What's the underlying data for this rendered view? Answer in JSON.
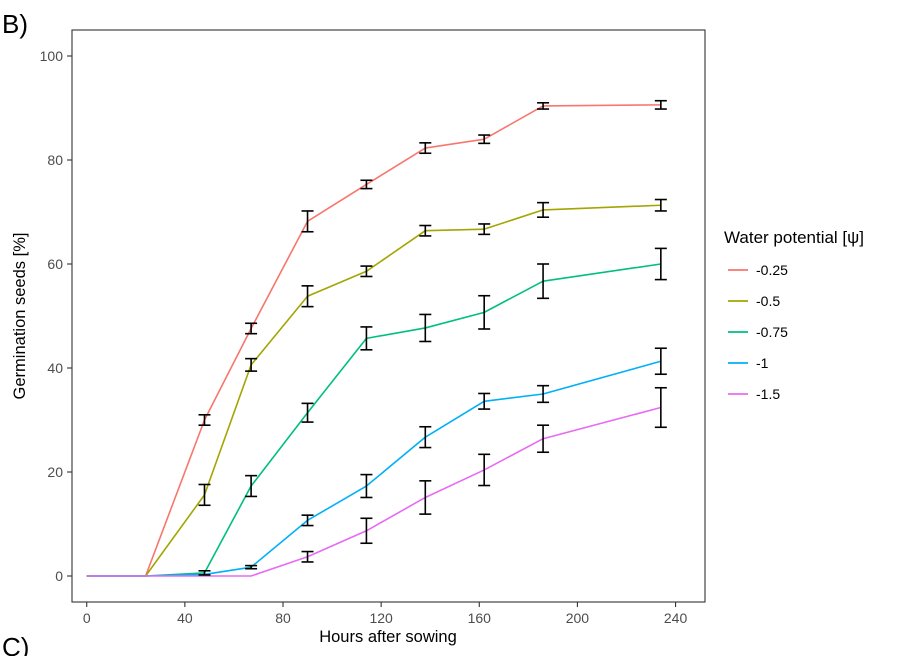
{
  "panel_label_top": "B)",
  "panel_label_bottom": "C)",
  "chart_data": {
    "type": "line",
    "title": "",
    "xlabel": "Hours after sowing",
    "ylabel": "Germination seeds [%]",
    "xlim": [
      -6,
      252
    ],
    "ylim": [
      -5,
      105
    ],
    "x_ticks": [
      0,
      40,
      80,
      120,
      160,
      200,
      240
    ],
    "y_ticks": [
      0,
      20,
      40,
      60,
      80,
      100
    ],
    "grid": false,
    "error_bars": true,
    "legend": {
      "title": "Water potential [ψ]",
      "position": "right"
    },
    "x": [
      0,
      24,
      48,
      67,
      90,
      114,
      138,
      162,
      186,
      234
    ],
    "series": [
      {
        "name": "-0.25",
        "color": "#F8766D",
        "values": [
          0,
          0,
          30,
          47.6,
          68.2,
          75.3,
          82.3,
          84,
          90.4,
          90.6
        ],
        "errors": [
          0,
          0,
          1,
          1,
          2,
          0.8,
          1,
          0.8,
          0.6,
          0.8
        ]
      },
      {
        "name": "-0.5",
        "color": "#A3A500",
        "values": [
          0,
          0,
          15.6,
          40.6,
          53.8,
          58.6,
          66.4,
          66.7,
          70.4,
          71.3
        ],
        "errors": [
          0,
          0,
          2,
          1.2,
          2,
          1,
          1,
          1,
          1.4,
          1.1
        ]
      },
      {
        "name": "-0.75",
        "color": "#00BF7D",
        "values": [
          0,
          0,
          0.6,
          17.3,
          31.4,
          45.7,
          47.7,
          50.7,
          56.7,
          60
        ],
        "errors": [
          0,
          0,
          0.4,
          2,
          1.8,
          2.2,
          2.6,
          3.2,
          3.3,
          3
        ]
      },
      {
        "name": "-1",
        "color": "#00B0F6",
        "values": [
          0,
          0,
          0.3,
          1.7,
          10.7,
          17.3,
          26.7,
          33.6,
          35,
          41.3
        ],
        "errors": [
          0,
          0,
          0,
          0.3,
          1,
          2.2,
          2,
          1.5,
          1.6,
          2.5
        ]
      },
      {
        "name": "-1.5",
        "color": "#E76BF3",
        "values": [
          0,
          0,
          0,
          0,
          3.7,
          8.7,
          15.1,
          20.4,
          26.4,
          32.4
        ],
        "errors": [
          0,
          0,
          0,
          0,
          1,
          2.4,
          3.2,
          3,
          2.6,
          3.8
        ]
      }
    ]
  }
}
